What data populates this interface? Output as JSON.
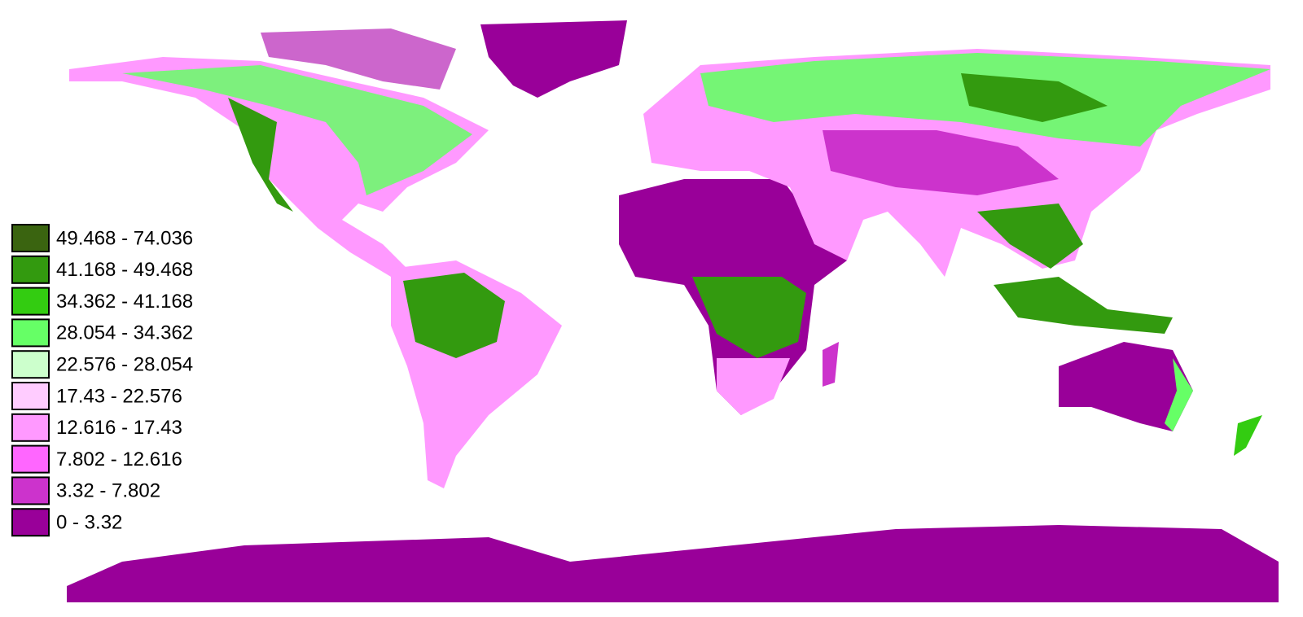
{
  "legend": {
    "items": [
      {
        "label": "49.468 - 74.036",
        "color": "#3a6410"
      },
      {
        "label": "41.168 - 49.468",
        "color": "#339a0f"
      },
      {
        "label": "34.362 - 41.168",
        "color": "#33cc11"
      },
      {
        "label": "28.054 - 34.362",
        "color": "#66ff66"
      },
      {
        "label": "22.576 - 28.054",
        "color": "#ccffcc"
      },
      {
        "label": "17.43 - 22.576",
        "color": "#ffccff"
      },
      {
        "label": "12.616 - 17.43",
        "color": "#ff99ff"
      },
      {
        "label": "7.802 - 12.616",
        "color": "#ff66ff"
      },
      {
        "label": "3.32 - 7.802",
        "color": "#cc33cc"
      },
      {
        "label": "0 - 3.32",
        "color": "#990099"
      }
    ]
  }
}
